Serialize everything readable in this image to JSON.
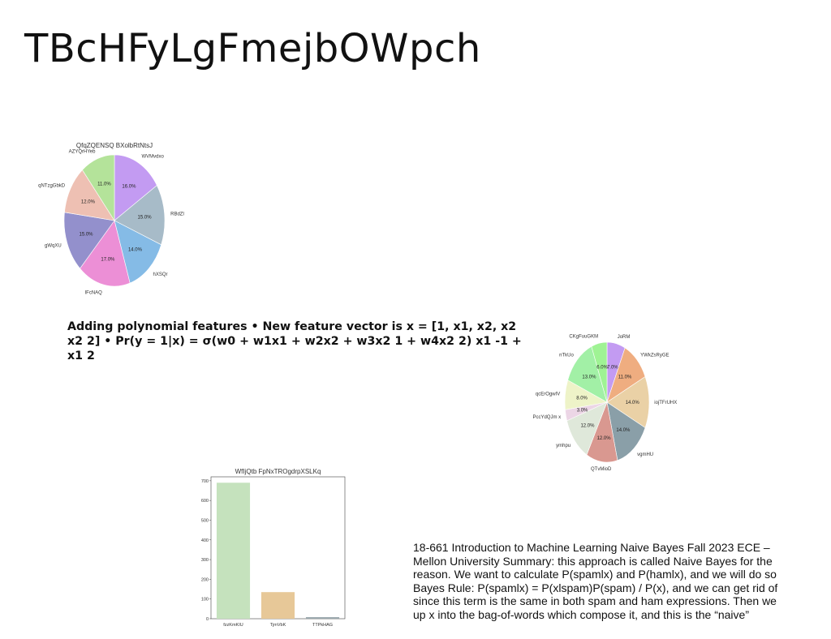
{
  "slide": {
    "title": "TBcHFyLgFmejbOWpch",
    "bold_paragraph": "Adding polynomial features • New feature vector is x = [1, x1, x2, x2 x2 2] • Pr(y = 1|x) = σ(w0 + w1x1 + w2x2 + w3x2 1 + w4x2 2) x1 -1 + x1 2",
    "summary_lines": [
      "18-661 Introduction to Machine Learning Naive Bayes Fall 2023 ECE –",
      "Mellon University Summary: this approach is called Naive Bayes for the",
      "reason. We want to calculate P(spamlx) and P(hamlx), and we will do so",
      "Bayes Rule: P(spamlx) = P(xlspam)P(spam) / P(x), and we can get rid of",
      "since this term is the same in both spam and ham expressions. Then we",
      "up x into the bag-of-words which compose it, and this is the “naive”"
    ]
  },
  "chart_data": [
    {
      "type": "pie",
      "title": "QfqZQENSQ BXolbRtNtsJ",
      "slices": [
        {
          "label": "WVMvdxo",
          "value": 16.0,
          "pct": "16.0%",
          "color": "#c39bf2"
        },
        {
          "label": "RBdZl",
          "value": 15.0,
          "pct": "15.0%",
          "color": "#a7bbc8"
        },
        {
          "label": "hXSQr",
          "value": 14.0,
          "pct": "14.0%",
          "color": "#85bbe6"
        },
        {
          "label": "IFcNAQ",
          "value": 17.0,
          "pct": "17.0%",
          "color": "#ec8fd6"
        },
        {
          "label": "gWqXU",
          "value": 15.0,
          "pct": "15.0%",
          "color": "#9390cc"
        },
        {
          "label": "qNTzgGbkD",
          "value": 12.0,
          "pct": "12.0%",
          "color": "#eec0b3"
        },
        {
          "label": "AZYQrHYeb",
          "value": 11.0,
          "pct": "11.0%",
          "color": "#b4e39a"
        }
      ]
    },
    {
      "type": "pie",
      "title": "",
      "slices": [
        {
          "label": "JoRM",
          "value": 7.0,
          "pct": "7.0%",
          "color": "#c39bf2"
        },
        {
          "label": "YWkZsRyGE",
          "value": 11.0,
          "pct": "11.0%",
          "color": "#efad80"
        },
        {
          "label": "iojTFrUHX",
          "value": 14.0,
          "pct": "14.0%",
          "color": "#ead1a6"
        },
        {
          "label": "vgmHU",
          "value": 14.0,
          "pct": "14.0%",
          "color": "#8a9fa8"
        },
        {
          "label": "QTvMioD",
          "value": 12.0,
          "pct": "12.0%",
          "color": "#d99890"
        },
        {
          "label": "ymhpu",
          "value": 12.0,
          "pct": "12.0%",
          "color": "#dfe8da"
        },
        {
          "label": "PccYdQJm x",
          "value": 3.0,
          "pct": "3.0%",
          "color": "#ecd6e6"
        },
        {
          "label": "qcErOgwIV",
          "value": 8.0,
          "pct": "8.0%",
          "color": "#eef3c8"
        },
        {
          "label": "nTkUo",
          "value": 13.0,
          "pct": "13.0%",
          "color": "#a2f0a6"
        },
        {
          "label": "CKgFuuGKM",
          "value": 6.0,
          "pct": "6.0%",
          "color": "#9ff394"
        }
      ]
    },
    {
      "type": "bar",
      "title": "WfIjQtb FpNxTROgdrpXSLKq",
      "categories": [
        "fzzKmKIU",
        "TjmVbK",
        "TTPkHAG"
      ],
      "values": [
        690,
        135,
        8
      ],
      "colors": [
        "#c5e2bd",
        "#e7c898",
        "#9aa7ad"
      ],
      "ylim": [
        0,
        720
      ],
      "yticks": [
        0,
        100,
        200,
        300,
        400,
        500,
        600,
        700
      ],
      "xlabel": "",
      "ylabel": ""
    }
  ]
}
